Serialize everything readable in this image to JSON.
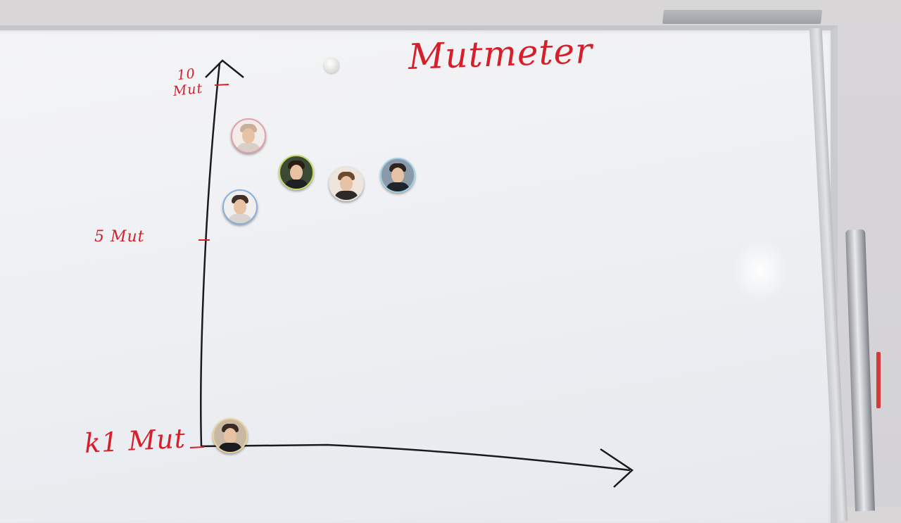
{
  "board": {
    "title": "Mutmeter",
    "axis_labels": {
      "top": [
        "10",
        "Mut"
      ],
      "middle": "5 Mut",
      "bottom": "k1 Mut"
    }
  },
  "magnets": [
    {
      "name": "avatar-person-1",
      "ring": "#e2a0aa",
      "bg": "#f3ede9",
      "shirt": "#d8d0c8",
      "hair": "#c9b09a"
    },
    {
      "name": "avatar-person-2",
      "ring": "#c7d86a",
      "bg": "#3b4a33",
      "shirt": "#1d1f22",
      "hair": "#2b1c14"
    },
    {
      "name": "avatar-person-3",
      "ring": "#e7e3df",
      "bg": "#efe5dc",
      "shirt": "#2e2a28",
      "hair": "#6b4a2d"
    },
    {
      "name": "avatar-person-4",
      "ring": "#9fd0e6",
      "bg": "#8a9aa8",
      "shirt": "#1e242b",
      "hair": "#2c241f"
    },
    {
      "name": "avatar-person-5",
      "ring": "#8bb0dc",
      "bg": "#f0efee",
      "shirt": "#d9d4cf",
      "hair": "#3f2f26"
    },
    {
      "name": "avatar-person-6",
      "ring": "#ead39a",
      "bg": "#c9b8a4",
      "shirt": "#1a1b1f",
      "hair": "#3a2a1f"
    }
  ],
  "colors": {
    "marker_red": "#d61f2b",
    "marker_black": "#1a1a1a"
  }
}
